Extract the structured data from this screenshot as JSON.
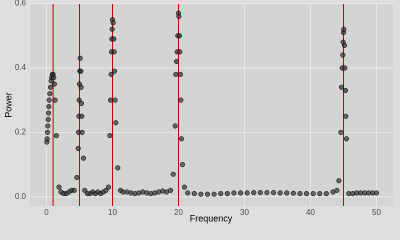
{
  "chart_data": {
    "type": "scatter",
    "x_label": "Frequency",
    "y_label": "Power",
    "x": [
      0.05,
      0.1,
      0.15,
      0.2,
      0.25,
      0.3,
      0.35,
      0.4,
      0.5,
      0.6,
      0.7,
      0.8,
      0.9,
      1.0,
      1.1,
      1.2,
      1.3,
      1.5,
      1.9,
      2.2,
      2.6,
      3.0,
      3.4,
      3.8,
      4.2,
      4.6,
      4.8,
      4.85,
      4.9,
      4.95,
      5.0,
      5.05,
      5.1,
      5.2,
      5.25,
      5.3,
      5.35,
      5.4,
      5.6,
      5.8,
      6.2,
      6.6,
      7.0,
      7.4,
      7.8,
      8.2,
      8.6,
      9.0,
      9.4,
      9.6,
      9.7,
      9.8,
      9.85,
      9.9,
      9.95,
      10.0,
      10.1,
      10.2,
      10.25,
      10.3,
      10.4,
      10.5,
      10.8,
      11.2,
      11.6,
      12.2,
      12.8,
      13.4,
      14.0,
      14.6,
      15.2,
      15.8,
      16.4,
      17.0,
      17.6,
      18.2,
      18.8,
      19.2,
      19.5,
      19.6,
      19.7,
      19.8,
      19.9,
      20.0,
      20.05,
      20.15,
      20.2,
      20.3,
      20.35,
      20.45,
      20.6,
      20.9,
      21.4,
      22.4,
      23.4,
      24.4,
      25.4,
      26.4,
      27.4,
      28.4,
      29.4,
      30.4,
      31.4,
      32.4,
      33.4,
      34.4,
      35.4,
      36.4,
      37.4,
      38.4,
      39.4,
      40.4,
      41.4,
      42.4,
      43.4,
      44.0,
      44.3,
      44.6,
      44.7,
      44.8,
      44.9,
      44.95,
      45.0,
      45.05,
      45.15,
      45.2,
      45.3,
      45.35,
      45.45,
      45.8,
      46.4,
      47.0,
      47.6,
      48.2,
      48.8,
      49.4,
      50.0
    ],
    "values": [
      0.17,
      0.18,
      0.2,
      0.22,
      0.24,
      0.26,
      0.28,
      0.3,
      0.32,
      0.34,
      0.36,
      0.37,
      0.38,
      0.38,
      0.37,
      0.35,
      0.3,
      0.19,
      0.03,
      0.015,
      0.01,
      0.01,
      0.015,
      0.02,
      0.02,
      0.06,
      0.15,
      0.2,
      0.25,
      0.3,
      0.35,
      0.39,
      0.43,
      0.39,
      0.34,
      0.29,
      0.25,
      0.2,
      0.12,
      0.02,
      0.01,
      0.01,
      0.015,
      0.01,
      0.015,
      0.01,
      0.015,
      0.02,
      0.03,
      0.19,
      0.3,
      0.38,
      0.45,
      0.49,
      0.52,
      0.55,
      0.54,
      0.49,
      0.45,
      0.39,
      0.3,
      0.23,
      0.09,
      0.02,
      0.015,
      0.015,
      0.012,
      0.01,
      0.012,
      0.015,
      0.012,
      0.01,
      0.012,
      0.015,
      0.018,
      0.015,
      0.02,
      0.07,
      0.22,
      0.38,
      0.42,
      0.45,
      0.5,
      0.57,
      0.56,
      0.5,
      0.45,
      0.38,
      0.3,
      0.18,
      0.1,
      0.03,
      0.012,
      0.01,
      0.008,
      0.008,
      0.008,
      0.01,
      0.01,
      0.012,
      0.012,
      0.012,
      0.013,
      0.013,
      0.013,
      0.013,
      0.012,
      0.012,
      0.011,
      0.01,
      0.01,
      0.01,
      0.01,
      0.01,
      0.015,
      0.02,
      0.05,
      0.2,
      0.34,
      0.4,
      0.44,
      0.48,
      0.51,
      0.52,
      0.47,
      0.4,
      0.33,
      0.25,
      0.18,
      0.01,
      0.01,
      0.012,
      0.012,
      0.012,
      0.012,
      0.012,
      0.012
    ],
    "color": "#333333",
    "vlines": [
      1,
      5,
      10,
      20,
      45
    ],
    "vline_color": "#cc0000",
    "xlim": [
      -2.5,
      52.5
    ],
    "xticks": [
      0,
      10,
      20,
      30,
      40,
      50
    ],
    "ylim": [
      -0.0285,
      0.5985
    ],
    "yticks": [
      {
        "value": 0,
        "label": "0.0"
      },
      0.2,
      0.4,
      0.6
    ],
    "grid": true
  }
}
